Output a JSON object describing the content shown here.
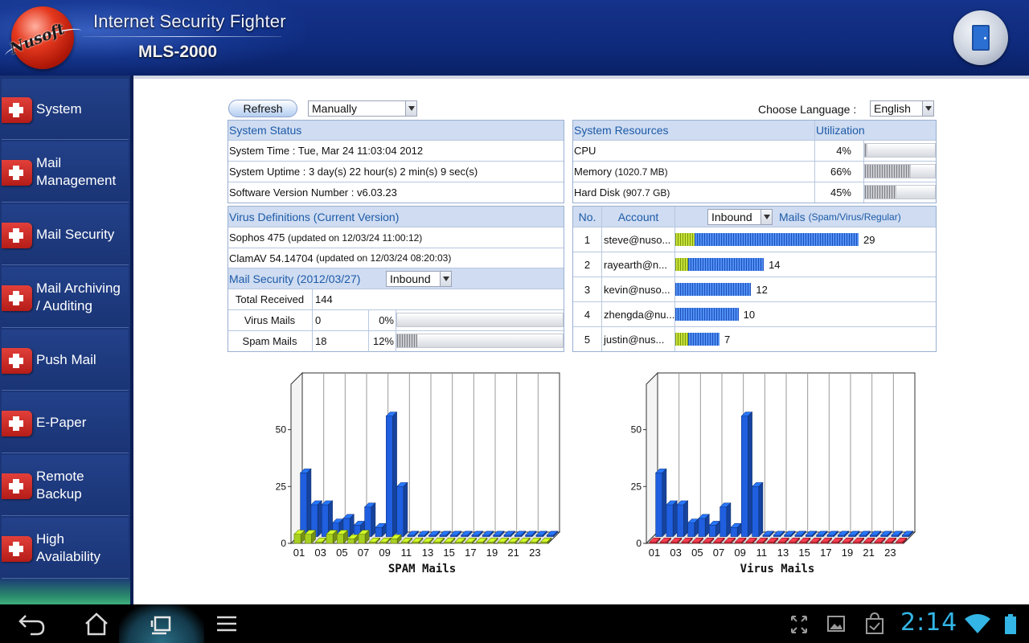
{
  "header": {
    "logo_text": "Nusoft",
    "product_title": "Internet Security Fighter",
    "model": "MLS-2000",
    "exit_icon": "door-icon"
  },
  "sidebar": {
    "items": [
      {
        "label": "System"
      },
      {
        "label": "Mail\nManagement"
      },
      {
        "label": "Mail Security"
      },
      {
        "label": "Mail Archiving\n / Auditing"
      },
      {
        "label": "Push Mail"
      },
      {
        "label": "E-Paper"
      },
      {
        "label": "Remote\nBackup"
      },
      {
        "label": "High\nAvailability"
      }
    ]
  },
  "toolbar": {
    "refresh_label": "Refresh",
    "refresh_mode": "Manually",
    "language_label": "Choose Language :",
    "language_value": "English"
  },
  "system_status": {
    "title": "System Status",
    "time": "System Time : Tue, Mar 24 11:03:04 2012",
    "uptime": "System Uptime : 3 day(s) 22 hour(s) 2 min(s) 9 sec(s)",
    "version": "Software Version Number : v6.03.23"
  },
  "virus_defs": {
    "title": "Virus Definitions (Current Version)",
    "sophos_name": "Sophos 475",
    "sophos_updated": "(updated on 12/03/24 11:00:12)",
    "clamav_name": "ClamAV 54.14704",
    "clamav_updated": "(updated on 12/03/24 08:20:03)"
  },
  "mail_security": {
    "title": "Mail Security (2012/03/27)",
    "direction": "Inbound",
    "total_label": "Total Received",
    "total_value": "144",
    "virus_label": "Virus Mails",
    "virus_value": "0",
    "virus_pct": "0%",
    "virus_fraction": 0.0,
    "spam_label": "Spam Mails",
    "spam_value": "18",
    "spam_pct": "12%",
    "spam_fraction": 0.12
  },
  "resources": {
    "title": "System Resources",
    "util_title": "Utilization",
    "rows": [
      {
        "name": "CPU",
        "detail": "",
        "pct": "4%",
        "fraction": 0.04
      },
      {
        "name": "Memory",
        "detail": "(1020.7 MB)",
        "pct": "66%",
        "fraction": 0.66
      },
      {
        "name": "Hard Disk",
        "detail": "(907.7 GB)",
        "pct": "45%",
        "fraction": 0.45
      }
    ]
  },
  "accounts": {
    "no_label": "No.",
    "account_label": "Account",
    "direction": "Inbound",
    "mails_label": "Mails",
    "mails_sub": "(Spam/Virus/Regular)",
    "rows": [
      {
        "no": "1",
        "account": "steve@nuso...",
        "count": "29",
        "spam": 3,
        "regular": 26
      },
      {
        "no": "2",
        "account": "rayearth@n...",
        "count": "14",
        "spam": 2,
        "regular": 12
      },
      {
        "no": "3",
        "account": "kevin@nuso...",
        "count": "12",
        "spam": 0,
        "regular": 12
      },
      {
        "no": "4",
        "account": "zhengda@nu...",
        "count": "10",
        "spam": 0,
        "regular": 10
      },
      {
        "no": "5",
        "account": "justin@nus...",
        "count": "7",
        "spam": 2,
        "regular": 5
      }
    ]
  },
  "chart_data": [
    {
      "type": "bar",
      "title": "SPAM Mails",
      "xlabel": "SPAM Mails",
      "ylabel": "",
      "ylim": [
        0,
        70
      ],
      "yticks": [
        "0",
        "25",
        "50"
      ],
      "categories": [
        "01",
        "02",
        "03",
        "04",
        "05",
        "06",
        "07",
        "08",
        "09",
        "10",
        "11",
        "12",
        "13",
        "14",
        "15",
        "16",
        "17",
        "18",
        "19",
        "20",
        "21",
        "22",
        "23",
        "24"
      ],
      "xtick_labels": [
        "01",
        "03",
        "05",
        "07",
        "09",
        "11",
        "13",
        "15",
        "17",
        "19",
        "21",
        "23"
      ],
      "series": [
        {
          "color": "#1f5fe0",
          "values": [
            28,
            14,
            14,
            6,
            8,
            5,
            13,
            4,
            53,
            22,
            0,
            0,
            0,
            0,
            0,
            0,
            0,
            0,
            0,
            0,
            0,
            0,
            0,
            0
          ]
        },
        {
          "color": "#a8d020",
          "values": [
            4,
            4,
            0,
            4,
            4,
            2,
            4,
            0,
            0,
            2,
            0,
            0,
            0,
            0,
            0,
            0,
            0,
            0,
            0,
            0,
            0,
            0,
            0,
            0
          ]
        }
      ]
    },
    {
      "type": "bar",
      "title": "Virus Mails",
      "xlabel": "Virus Mails",
      "ylabel": "",
      "ylim": [
        0,
        70
      ],
      "yticks": [
        "0",
        "25",
        "50"
      ],
      "categories": [
        "01",
        "02",
        "03",
        "04",
        "05",
        "06",
        "07",
        "08",
        "09",
        "10",
        "11",
        "12",
        "13",
        "14",
        "15",
        "16",
        "17",
        "18",
        "19",
        "20",
        "21",
        "22",
        "23",
        "24"
      ],
      "xtick_labels": [
        "01",
        "03",
        "05",
        "07",
        "09",
        "11",
        "13",
        "15",
        "17",
        "19",
        "21",
        "23"
      ],
      "series": [
        {
          "color": "#1f5fe0",
          "values": [
            28,
            14,
            14,
            6,
            8,
            5,
            13,
            4,
            53,
            22,
            0,
            0,
            0,
            0,
            0,
            0,
            0,
            0,
            0,
            0,
            0,
            0,
            0,
            0
          ]
        },
        {
          "color": "#e03040",
          "values": [
            0,
            0,
            0,
            0,
            0,
            0,
            0,
            0,
            0,
            0,
            0,
            0,
            0,
            0,
            0,
            0,
            0,
            0,
            0,
            0,
            0,
            0,
            0,
            0
          ]
        }
      ]
    }
  ],
  "status_bar": {
    "clock": "2:14"
  }
}
